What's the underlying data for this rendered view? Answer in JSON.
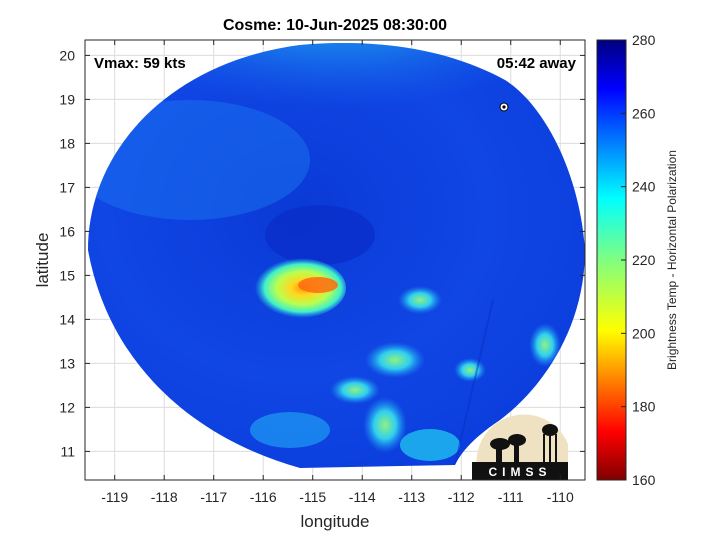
{
  "chart_data": {
    "type": "heatmap",
    "title": "Cosme: 10-Jun-2025 08:30:00",
    "xlabel": "longitude",
    "ylabel": "latitude",
    "xlim": [
      -119.6,
      -109.5
    ],
    "ylim": [
      10.35,
      20.35
    ],
    "x_ticks": [
      -119,
      -118,
      -117,
      -116,
      -115,
      -114,
      -113,
      -112,
      -111,
      -110
    ],
    "y_ticks": [
      11,
      12,
      13,
      14,
      15,
      16,
      17,
      18,
      19,
      20
    ],
    "x_tick_labels": [
      "-119",
      "-118",
      "-117",
      "-116",
      "-115",
      "-114",
      "-113",
      "-112",
      "-111",
      "-110"
    ],
    "y_tick_labels": [
      "11",
      "12",
      "13",
      "14",
      "15",
      "16",
      "17",
      "18",
      "19",
      "20"
    ],
    "grid": true,
    "colorbar": {
      "label": "Brightness Temp - Horizontal Polarization",
      "range": [
        160,
        280
      ],
      "ticks": [
        160,
        180,
        200,
        220,
        240,
        260,
        280
      ],
      "tick_labels": [
        "160",
        "180",
        "200",
        "220",
        "240",
        "260",
        "280"
      ],
      "colormap": "jet"
    },
    "annotations": {
      "vmax": "Vmax: 59 kts",
      "time_away": "05:42 away"
    },
    "storm_center": {
      "lon": -114.6,
      "lat": 14.8,
      "min_temp": 190
    },
    "logo_text": "CIMSS"
  }
}
